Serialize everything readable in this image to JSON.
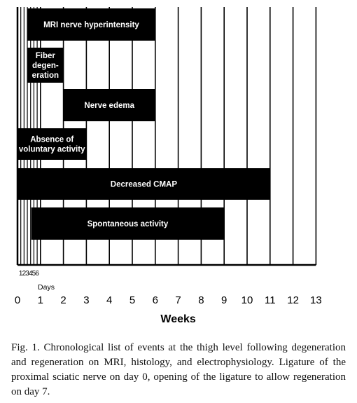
{
  "chart_data": {
    "type": "gantt",
    "xlabel": "Weeks",
    "xlim": [
      0,
      13
    ],
    "x_ticks": [
      "0",
      "1",
      "2",
      "3",
      "4",
      "5",
      "6",
      "7",
      "8",
      "9",
      "10",
      "11",
      "12",
      "13"
    ],
    "day_ticks": [
      "1",
      "2",
      "3",
      "4",
      "5",
      "6"
    ],
    "day_axis_label": "Days",
    "bars": [
      {
        "label": "MRI nerve hyperintensity",
        "start_week": 0.43,
        "end_week": 6
      },
      {
        "label": "Fiber degen- eration",
        "label_lines": [
          "Fiber",
          "degen-",
          "eration"
        ],
        "start_week": 0.43,
        "end_week": 2.0
      },
      {
        "label": "Nerve edema",
        "start_week": 2.0,
        "end_week": 6
      },
      {
        "label": "Absence of voluntary activity",
        "label_lines": [
          "Absence of",
          "voluntary activity"
        ],
        "start_week": 0,
        "end_week": 3
      },
      {
        "label": "Decreased CMAP",
        "start_week": 0,
        "end_week": 11
      },
      {
        "label": "Spontaneous activity",
        "start_week": 0.6,
        "end_week": 9
      }
    ]
  },
  "caption": "Fig. 1. Chronological list of events at the thigh level following degeneration and regeneration on MRI, histology, and electrophysiology. Ligature of the proximal sciatic nerve on day 0, opening of the ligature to allow regeneration on day 7.",
  "colors": {
    "bar": "#000000",
    "bar_text": "#ffffff",
    "grid": "#000000"
  }
}
